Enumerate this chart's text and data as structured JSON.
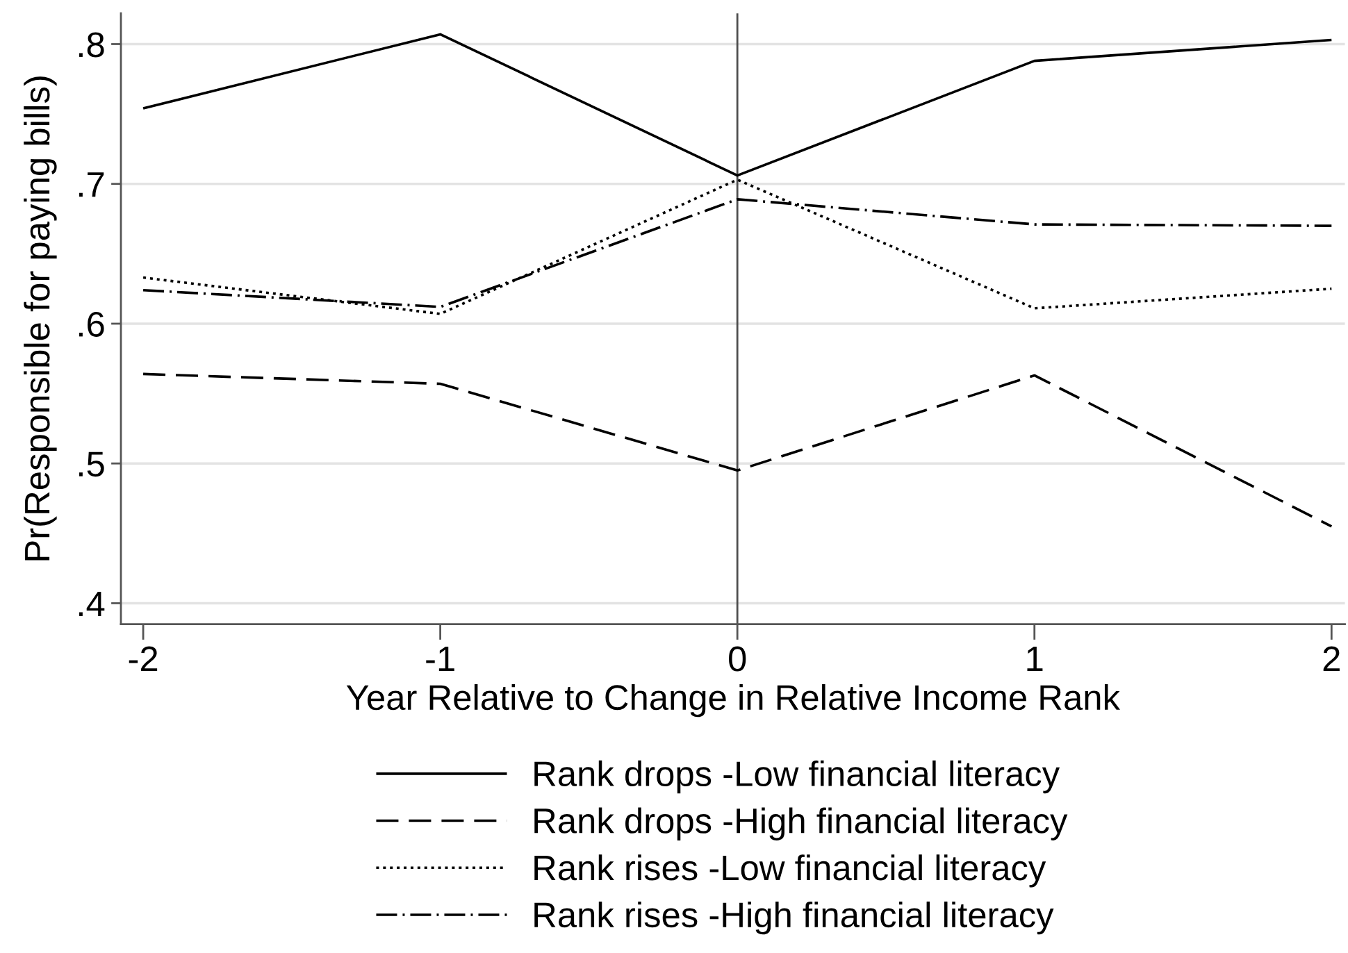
{
  "chart_data": {
    "type": "line",
    "xlabel": "Year Relative to Change in Relative Income Rank",
    "ylabel": "Pr(Responsible for paying bills)",
    "x": [
      -2,
      -1,
      0,
      1,
      2
    ],
    "xlim": [
      -2.075,
      2.045
    ],
    "xticks": [
      -2,
      -1,
      0,
      1,
      2
    ],
    "ylim": [
      0.385,
      0.822
    ],
    "yticks": [
      {
        "value": 0.4,
        "label": ".4"
      },
      {
        "value": 0.5,
        "label": ".5"
      },
      {
        "value": 0.6,
        "label": ".6"
      },
      {
        "value": 0.7,
        "label": ".7"
      },
      {
        "value": 0.8,
        "label": ".8"
      }
    ],
    "grid": "y",
    "legend": "bottom",
    "marker": "none",
    "ref_lines": [
      {
        "axis": "x",
        "value": 0,
        "color": "#4d4d4d"
      }
    ],
    "series": [
      {
        "name": "Rank drops -Low financial literacy",
        "color": "#000000",
        "line_style": "solid",
        "values": [
          0.754,
          0.807,
          0.706,
          0.788,
          0.803
        ]
      },
      {
        "name": "Rank drops -High financial literacy",
        "color": "#000000",
        "line_style": "dashed",
        "values": [
          0.564,
          0.557,
          0.495,
          0.563,
          0.455
        ]
      },
      {
        "name": "Rank rises -Low financial literacy",
        "color": "#000000",
        "line_style": "dotted",
        "values": [
          0.633,
          0.607,
          0.703,
          0.611,
          0.625
        ]
      },
      {
        "name": "Rank rises -High financial literacy",
        "color": "#000000",
        "line_style": "dashdot",
        "values": [
          0.624,
          0.612,
          0.689,
          0.671,
          0.67
        ]
      }
    ]
  }
}
